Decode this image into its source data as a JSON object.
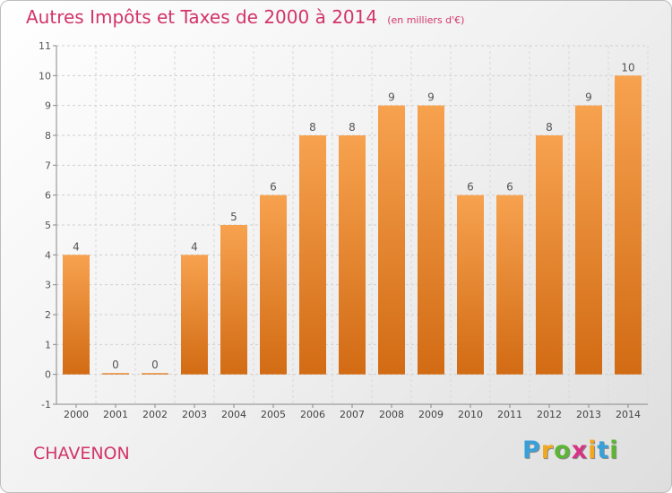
{
  "chart_data": {
    "type": "bar",
    "title": "Autres Impôts et Taxes de 2000 à 2014",
    "unit": "(en milliers d'€)",
    "categories": [
      "2000",
      "2001",
      "2002",
      "2003",
      "2004",
      "2005",
      "2006",
      "2007",
      "2008",
      "2009",
      "2010",
      "2011",
      "2012",
      "2013",
      "2014"
    ],
    "values": [
      4,
      0,
      0,
      4,
      5,
      6,
      8,
      8,
      9,
      9,
      6,
      6,
      8,
      9,
      10
    ],
    "ylim": [
      -1,
      11
    ],
    "yticks": [
      "-1",
      "0",
      "1",
      "2",
      "3",
      "4",
      "5",
      "6",
      "7",
      "8",
      "9",
      "10",
      "11"
    ],
    "grid": true,
    "bar_color_top": "#f7a24f",
    "bar_color_bottom": "#d26b14"
  },
  "footer": {
    "commune": "CHAVENON"
  },
  "logo": {
    "letters": [
      "P",
      "r",
      "o",
      "x",
      "i",
      "t",
      "i"
    ],
    "colors": [
      "#3aa0d8",
      "#f2a81d",
      "#5cb533",
      "#d63384",
      "#f2a81d",
      "#3aa0d8",
      "#5cb533"
    ]
  }
}
